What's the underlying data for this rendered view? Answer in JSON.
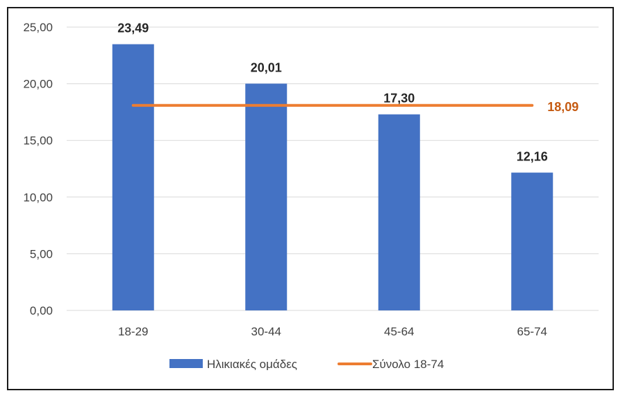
{
  "chart_data": {
    "type": "bar",
    "categories": [
      "18-29",
      "30-44",
      "45-64",
      "65-74"
    ],
    "series": [
      {
        "name": "Ηλικιακές ομάδες",
        "type": "bar",
        "values": [
          23.49,
          20.01,
          17.3,
          12.16
        ],
        "labels": [
          "23,49",
          "20,01",
          "17,30",
          "12,16"
        ],
        "color": "#4472C4"
      },
      {
        "name": "Σύνολο 18-74",
        "type": "line",
        "value": 18.09,
        "label": "18,09",
        "color": "#ED7D31",
        "label_color": "#C55A11"
      }
    ],
    "y_ticks": [
      "0,00",
      "5,00",
      "10,00",
      "15,00",
      "20,00",
      "25,00"
    ],
    "ylim": [
      0,
      25
    ],
    "grid": true,
    "legend_position": "bottom"
  }
}
